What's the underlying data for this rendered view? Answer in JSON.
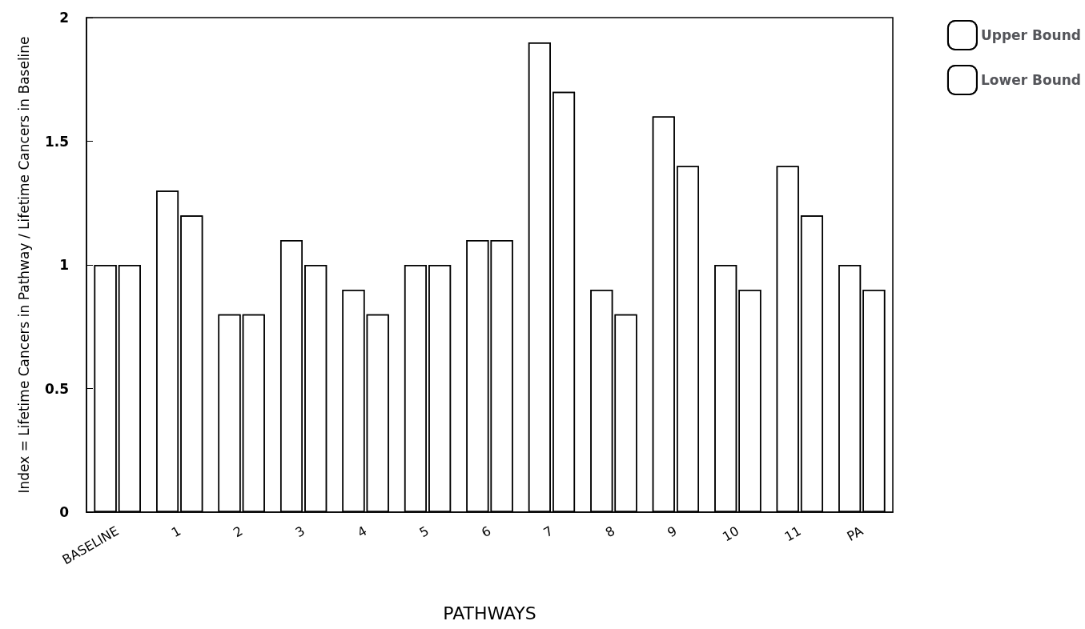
{
  "chart_data": {
    "type": "bar",
    "xlabel": "PATHWAYS",
    "ylabel": "Index = Lifetime Cancers in Pathway / Lifetime Cancers in Baseline",
    "categories": [
      "BASELINE",
      "1",
      "2",
      "3",
      "4",
      "5",
      "6",
      "7",
      "8",
      "9",
      "10",
      "11",
      "PA"
    ],
    "series": [
      {
        "name": "Upper Bound",
        "color": "#ffffff",
        "values": [
          1.0,
          1.3,
          0.8,
          1.1,
          0.9,
          1.0,
          1.1,
          1.9,
          0.9,
          1.6,
          1.0,
          1.4,
          1.0
        ]
      },
      {
        "name": "Lower Bound",
        "color": "#ffffff",
        "values": [
          1.0,
          1.2,
          0.8,
          1.0,
          0.8,
          1.0,
          1.1,
          1.7,
          0.8,
          1.4,
          0.9,
          1.2,
          0.9
        ]
      }
    ],
    "ylim": [
      0,
      2
    ],
    "yticks": [
      0,
      0.5,
      1,
      1.5,
      2
    ],
    "grid": false,
    "legend": "top right"
  }
}
